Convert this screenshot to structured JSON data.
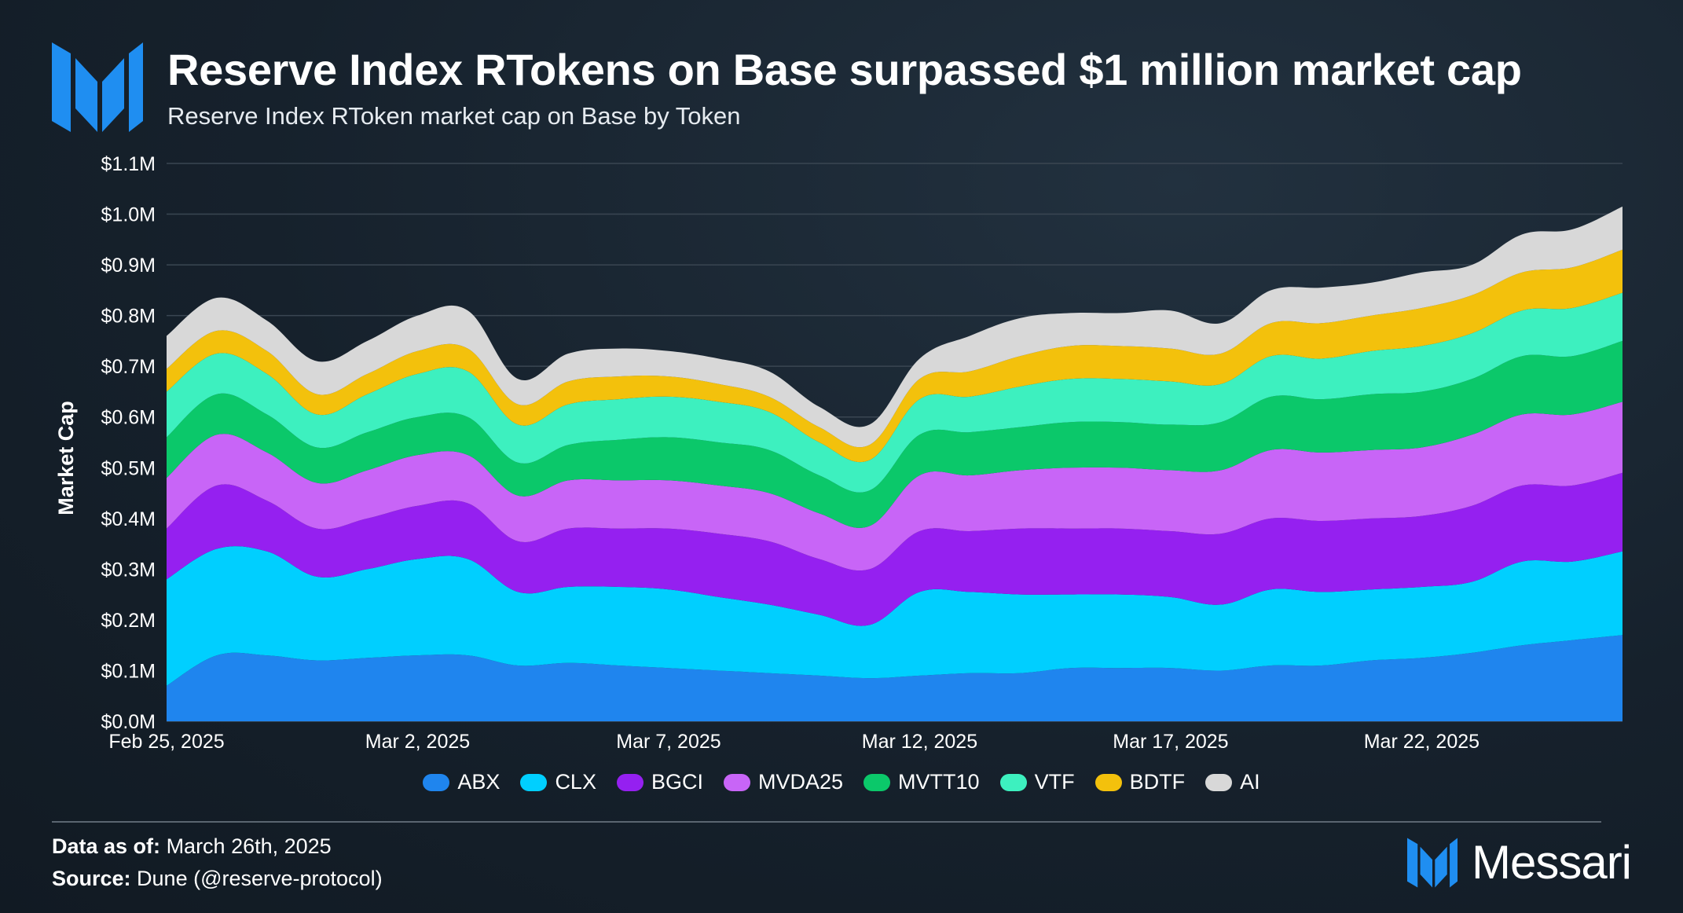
{
  "header": {
    "title": "Reserve Index RTokens on Base surpassed $1 million market cap",
    "subtitle": "Reserve Index RToken market cap on Base by Token"
  },
  "footer": {
    "data_as_of_label": "Data as of:",
    "data_as_of_value": "March 26th, 2025",
    "source_label": "Source:",
    "source_value": "Dune (@reserve-protocol)",
    "brand": "Messari"
  },
  "colors": {
    "brand_blue": "#1f8ef1",
    "grid": "#3a4652"
  },
  "chart_data": {
    "type": "area",
    "stacked": true,
    "ylabel": "Market Cap",
    "ylim": [
      0,
      1.1
    ],
    "y_unit": "$M",
    "yticks": [
      "$0.0M",
      "$0.1M",
      "$0.2M",
      "$0.3M",
      "$0.4M",
      "$0.5M",
      "$0.6M",
      "$0.7M",
      "$0.8M",
      "$0.9M",
      "$1.0M",
      "$1.1M"
    ],
    "xticks": [
      "Feb 25, 2025",
      "Mar 2, 2025",
      "Mar 7, 2025",
      "Mar 12, 2025",
      "Mar 17, 2025",
      "Mar 22, 2025"
    ],
    "x": [
      "2025-02-25",
      "2025-02-26",
      "2025-02-27",
      "2025-02-28",
      "2025-03-01",
      "2025-03-02",
      "2025-03-03",
      "2025-03-04",
      "2025-03-05",
      "2025-03-06",
      "2025-03-07",
      "2025-03-08",
      "2025-03-09",
      "2025-03-10",
      "2025-03-11",
      "2025-03-12",
      "2025-03-13",
      "2025-03-14",
      "2025-03-15",
      "2025-03-16",
      "2025-03-17",
      "2025-03-18",
      "2025-03-19",
      "2025-03-20",
      "2025-03-21",
      "2025-03-22",
      "2025-03-23",
      "2025-03-24",
      "2025-03-25",
      "2025-03-26"
    ],
    "grid": true,
    "legend_position": "bottom",
    "series": [
      {
        "name": "ABX",
        "color": "#1f85ee",
        "values": [
          0.07,
          0.13,
          0.13,
          0.12,
          0.125,
          0.13,
          0.13,
          0.11,
          0.115,
          0.11,
          0.105,
          0.1,
          0.095,
          0.09,
          0.085,
          0.09,
          0.095,
          0.095,
          0.105,
          0.105,
          0.105,
          0.1,
          0.11,
          0.11,
          0.12,
          0.125,
          0.135,
          0.15,
          0.16,
          0.17
        ]
      },
      {
        "name": "CLX",
        "color": "#00cfff",
        "values": [
          0.21,
          0.21,
          0.205,
          0.165,
          0.175,
          0.19,
          0.19,
          0.145,
          0.15,
          0.155,
          0.155,
          0.145,
          0.135,
          0.12,
          0.105,
          0.165,
          0.16,
          0.155,
          0.145,
          0.145,
          0.14,
          0.13,
          0.15,
          0.145,
          0.14,
          0.14,
          0.14,
          0.165,
          0.155,
          0.165
        ]
      },
      {
        "name": "BGCI",
        "color": "#9520f0",
        "values": [
          0.1,
          0.125,
          0.1,
          0.095,
          0.1,
          0.105,
          0.11,
          0.1,
          0.115,
          0.115,
          0.12,
          0.125,
          0.125,
          0.11,
          0.11,
          0.12,
          0.12,
          0.13,
          0.13,
          0.13,
          0.13,
          0.14,
          0.14,
          0.14,
          0.14,
          0.14,
          0.15,
          0.15,
          0.15,
          0.155
        ]
      },
      {
        "name": "MVDA25",
        "color": "#c865f7",
        "values": [
          0.1,
          0.1,
          0.095,
          0.09,
          0.095,
          0.1,
          0.095,
          0.09,
          0.095,
          0.095,
          0.095,
          0.095,
          0.095,
          0.09,
          0.085,
          0.11,
          0.11,
          0.115,
          0.12,
          0.12,
          0.12,
          0.125,
          0.135,
          0.135,
          0.135,
          0.135,
          0.14,
          0.14,
          0.14,
          0.14
        ]
      },
      {
        "name": "MVTT10",
        "color": "#0bc86a",
        "values": [
          0.08,
          0.08,
          0.075,
          0.07,
          0.075,
          0.075,
          0.075,
          0.065,
          0.07,
          0.08,
          0.085,
          0.085,
          0.085,
          0.075,
          0.07,
          0.08,
          0.085,
          0.085,
          0.09,
          0.09,
          0.09,
          0.095,
          0.105,
          0.105,
          0.11,
          0.11,
          0.11,
          0.115,
          0.115,
          0.12
        ]
      },
      {
        "name": "VTF",
        "color": "#3df0bf",
        "values": [
          0.09,
          0.08,
          0.08,
          0.065,
          0.075,
          0.085,
          0.09,
          0.075,
          0.08,
          0.08,
          0.08,
          0.08,
          0.075,
          0.065,
          0.06,
          0.07,
          0.07,
          0.08,
          0.085,
          0.085,
          0.085,
          0.075,
          0.08,
          0.08,
          0.085,
          0.09,
          0.09,
          0.09,
          0.095,
          0.095
        ]
      },
      {
        "name": "BDTF",
        "color": "#f3c10c",
        "values": [
          0.045,
          0.045,
          0.045,
          0.04,
          0.04,
          0.045,
          0.045,
          0.04,
          0.045,
          0.045,
          0.04,
          0.035,
          0.03,
          0.03,
          0.03,
          0.04,
          0.05,
          0.06,
          0.065,
          0.065,
          0.065,
          0.06,
          0.065,
          0.07,
          0.07,
          0.075,
          0.075,
          0.075,
          0.08,
          0.085
        ]
      },
      {
        "name": "AI",
        "color": "#d8d8d8",
        "values": [
          0.065,
          0.065,
          0.06,
          0.065,
          0.065,
          0.07,
          0.075,
          0.05,
          0.055,
          0.055,
          0.05,
          0.05,
          0.05,
          0.04,
          0.04,
          0.04,
          0.07,
          0.075,
          0.065,
          0.065,
          0.075,
          0.06,
          0.065,
          0.07,
          0.065,
          0.07,
          0.06,
          0.075,
          0.075,
          0.085
        ]
      }
    ]
  }
}
